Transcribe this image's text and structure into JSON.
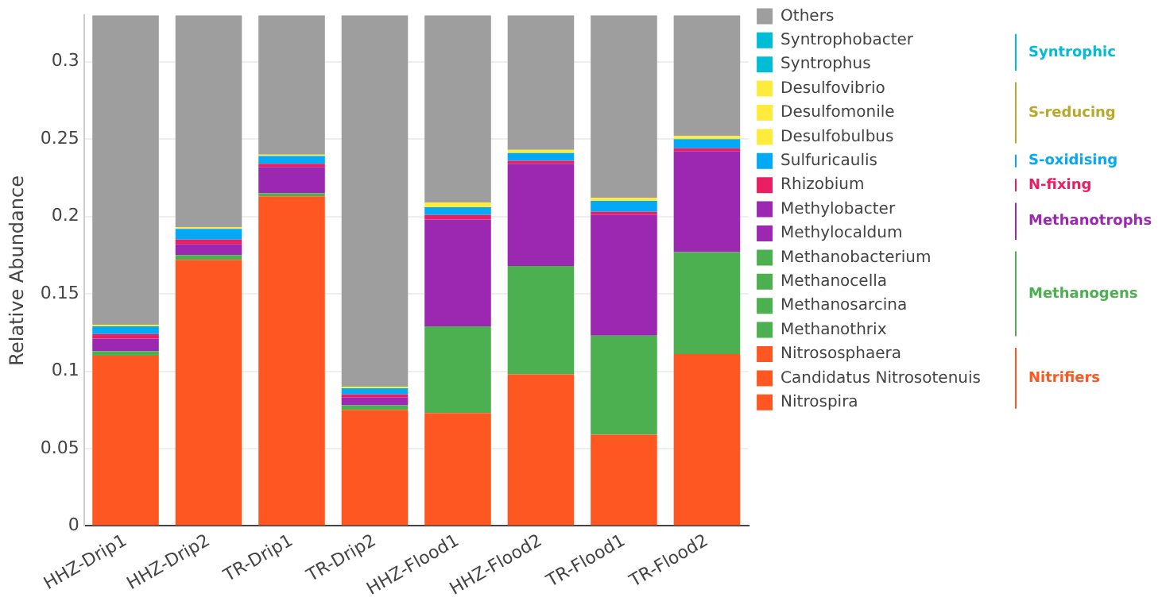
{
  "chart_data": {
    "type": "bar",
    "stacked": true,
    "ylabel": "Relative Abundance",
    "categories": [
      "HHZ-Drip1",
      "HHZ-Drip2",
      "TR-Drip1",
      "TR-Drip2",
      "HHZ-Flood1",
      "HHZ-Flood2",
      "TR-Flood1",
      "TR-Flood2"
    ],
    "ylim": [
      0,
      0.33
    ],
    "yticks": [
      0,
      0.05,
      0.1,
      0.15,
      0.2,
      0.25,
      0.3
    ],
    "grid": "y",
    "legend": "right",
    "series": [
      {
        "name": "Nitrospira",
        "color": "#ff5722",
        "values": [
          0.11,
          0.172,
          0.213,
          0.075,
          0.073,
          0.098,
          0.059,
          0.111
        ]
      },
      {
        "name": "Candidatus Nitrosotenuis",
        "color": "#ff5722",
        "values": [
          null,
          null,
          null,
          null,
          null,
          null,
          null,
          null
        ]
      },
      {
        "name": "Nitrososphaera",
        "color": "#ff5722",
        "values": [
          null,
          null,
          null,
          null,
          null,
          null,
          null,
          null
        ]
      },
      {
        "name": "Methanothrix",
        "color": "#4caf50",
        "values": [
          0.003,
          0.003,
          0.002,
          0.003,
          0.056,
          0.07,
          0.064,
          0.066
        ]
      },
      {
        "name": "Methanosarcina",
        "color": "#4caf50",
        "values": [
          null,
          null,
          null,
          null,
          null,
          null,
          null,
          null
        ]
      },
      {
        "name": "Methanocella",
        "color": "#4caf50",
        "values": [
          null,
          null,
          null,
          null,
          null,
          null,
          null,
          null
        ]
      },
      {
        "name": "Methanobacterium",
        "color": "#4caf50",
        "values": [
          null,
          null,
          null,
          null,
          null,
          null,
          null,
          null
        ]
      },
      {
        "name": "Methylocaldum",
        "color": "#9c27b0",
        "values": [
          0.008,
          0.007,
          0.017,
          0.005,
          0.069,
          0.066,
          0.078,
          0.065
        ]
      },
      {
        "name": "Methylobacter",
        "color": "#9c27b0",
        "values": [
          null,
          null,
          null,
          null,
          null,
          null,
          null,
          null
        ]
      },
      {
        "name": "Rhizobium",
        "color": "#e91e63",
        "values": [
          0.003,
          0.003,
          0.002,
          0.002,
          0.003,
          0.002,
          0.002,
          0.002
        ]
      },
      {
        "name": "Sulfuricaulis",
        "color": "#03a9f4",
        "values": [
          0.005,
          0.007,
          0.005,
          0.004,
          0.005,
          0.005,
          0.007,
          0.006
        ]
      },
      {
        "name": "Desulfobulbus",
        "color": "#ffeb3b",
        "values": [
          0.001,
          0.001,
          0.001,
          0.001,
          0.003,
          0.002,
          0.002,
          0.002
        ]
      },
      {
        "name": "Desulfomonile",
        "color": "#ffeb3b",
        "values": [
          null,
          null,
          null,
          null,
          null,
          null,
          null,
          null
        ]
      },
      {
        "name": "Desulfovibrio",
        "color": "#ffeb3b",
        "values": [
          null,
          null,
          null,
          null,
          null,
          null,
          null,
          null
        ]
      },
      {
        "name": "Syntrophus",
        "color": "#00bcd4",
        "values": [
          null,
          null,
          null,
          null,
          null,
          null,
          null,
          null
        ]
      },
      {
        "name": "Syntrophobacter",
        "color": "#00bcd4",
        "values": [
          null,
          null,
          null,
          null,
          null,
          null,
          null,
          null
        ]
      },
      {
        "name": "Others",
        "color": "#9e9e9e",
        "values": [
          0.2,
          0.137,
          0.09,
          0.24,
          0.121,
          0.087,
          0.118,
          0.078
        ]
      }
    ],
    "annotations": [
      "Syntrophic",
      "S-reducing",
      "S-oxidising",
      "N-fixing",
      "Methanotrophs",
      "Methanogens",
      "Nitrifiers"
    ]
  }
}
